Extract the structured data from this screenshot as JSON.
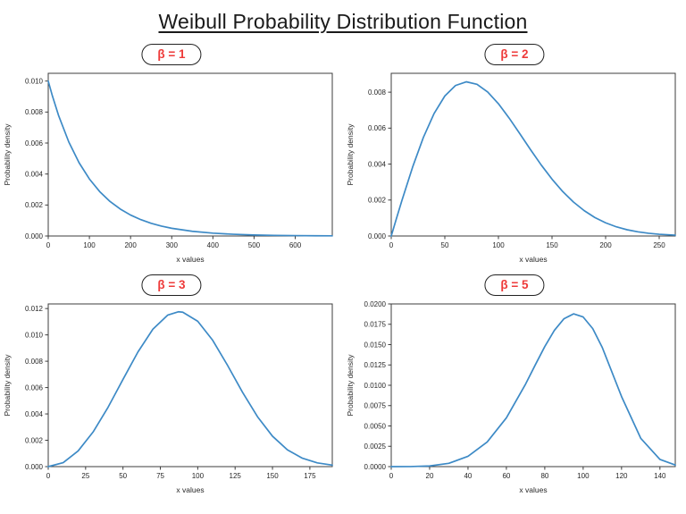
{
  "title": "Weibull Probability Distribution Function",
  "colors": {
    "curve": "#3d8ac6",
    "label_red": "#ee3a39",
    "axis": "#3c3c3c",
    "tick_text": "#262626",
    "background": "#ffffff"
  },
  "chart_data": {
    "layout": "2x2 grid of subplots, no legend, no gridlines, all four spines drawn",
    "subplots": [
      {
        "type": "line",
        "beta_label": "β = 1",
        "xlabel": "x values",
        "ylabel": "Probability density",
        "xlim": [
          0,
          690
        ],
        "ylim": [
          0,
          0.0105
        ],
        "x_ticks": [
          0,
          100,
          200,
          300,
          400,
          500,
          600
        ],
        "y_ticks": [
          "0.000",
          "0.002",
          "0.004",
          "0.006",
          "0.008",
          "0.010"
        ],
        "curve": {
          "x": [
            0,
            10,
            25,
            50,
            75,
            100,
            125,
            150,
            175,
            200,
            225,
            250,
            275,
            300,
            350,
            400,
            450,
            500,
            550,
            600,
            650,
            690
          ],
          "y": [
            0.01,
            0.009048,
            0.007788,
            0.006065,
            0.004724,
            0.003679,
            0.002865,
            0.002231,
            0.001738,
            0.001353,
            0.001054,
            0.000821,
            0.000639,
            0.000498,
            0.000302,
            0.000183,
            0.000111,
            6.7e-05,
            4.1e-05,
            2.5e-05,
            1.5e-05,
            1e-05
          ]
        }
      },
      {
        "type": "line",
        "beta_label": "β = 2",
        "xlabel": "x values",
        "ylabel": "Probability density",
        "xlim": [
          0,
          265
        ],
        "ylim": [
          0,
          0.00905
        ],
        "x_ticks": [
          0,
          50,
          100,
          150,
          200,
          250
        ],
        "y_ticks": [
          "0.000",
          "0.002",
          "0.004",
          "0.006",
          "0.008"
        ],
        "curve": {
          "x": [
            0,
            5,
            10,
            20,
            30,
            40,
            50,
            60,
            70,
            80,
            90,
            100,
            110,
            120,
            130,
            140,
            150,
            160,
            170,
            180,
            190,
            200,
            210,
            220,
            230,
            240,
            250,
            265
          ],
          "y": [
            0,
            0.000998,
            0.00198,
            0.003843,
            0.005484,
            0.006817,
            0.007788,
            0.008372,
            0.008577,
            0.008437,
            0.008008,
            0.007358,
            0.00656,
            0.005686,
            0.004798,
            0.003944,
            0.003162,
            0.002473,
            0.00189,
            0.001411,
            0.001027,
            0.000733,
            0.00051,
            0.000348,
            0.000232,
            0.000151,
            9.7e-05,
            4.7e-05
          ]
        }
      },
      {
        "type": "line",
        "beta_label": "β = 3",
        "xlabel": "x values",
        "ylabel": "Probability density",
        "xlim": [
          0,
          190
        ],
        "ylim": [
          0,
          0.01235
        ],
        "x_ticks": [
          0,
          25,
          50,
          75,
          100,
          125,
          150,
          175
        ],
        "y_ticks": [
          "0.000",
          "0.002",
          "0.004",
          "0.006",
          "0.008",
          "0.010",
          "0.012"
        ],
        "curve": {
          "x": [
            0,
            10,
            20,
            30,
            40,
            50,
            60,
            70,
            80,
            87,
            90,
            100,
            110,
            120,
            130,
            140,
            150,
            160,
            170,
            180,
            190
          ],
          "y": [
            0,
            0.0003,
            0.00119,
            0.002628,
            0.004502,
            0.006619,
            0.008702,
            0.010432,
            0.011507,
            0.011755,
            0.011722,
            0.011036,
            0.009591,
            0.007677,
            0.005635,
            0.003784,
            0.002311,
            0.001276,
            0.000637,
            0.000286,
            0.000114
          ]
        }
      },
      {
        "type": "line",
        "beta_label": "β = 5",
        "xlabel": "x values",
        "ylabel": "Probability density",
        "xlim": [
          0,
          148
        ],
        "ylim": [
          0,
          0.02
        ],
        "x_ticks": [
          0,
          20,
          40,
          60,
          80,
          100,
          120,
          140
        ],
        "y_ticks": [
          "0.0000",
          "0.0025",
          "0.0050",
          "0.0075",
          "0.0100",
          "0.0125",
          "0.0150",
          "0.0175",
          "0.0200"
        ],
        "curve": {
          "x": [
            0,
            10,
            20,
            30,
            40,
            50,
            60,
            70,
            75,
            80,
            85,
            90,
            95,
            100,
            105,
            110,
            120,
            130,
            140,
            148
          ],
          "y": [
            0,
            5e-06,
            8e-05,
            0.000404,
            0.001267,
            0.003029,
            0.005995,
            0.010148,
            0.012479,
            0.014758,
            0.01675,
            0.018176,
            0.018784,
            0.018394,
            0.016963,
            0.014627,
            0.008615,
            0.003486,
            0.000886,
            0.000197
          ]
        }
      }
    ]
  }
}
